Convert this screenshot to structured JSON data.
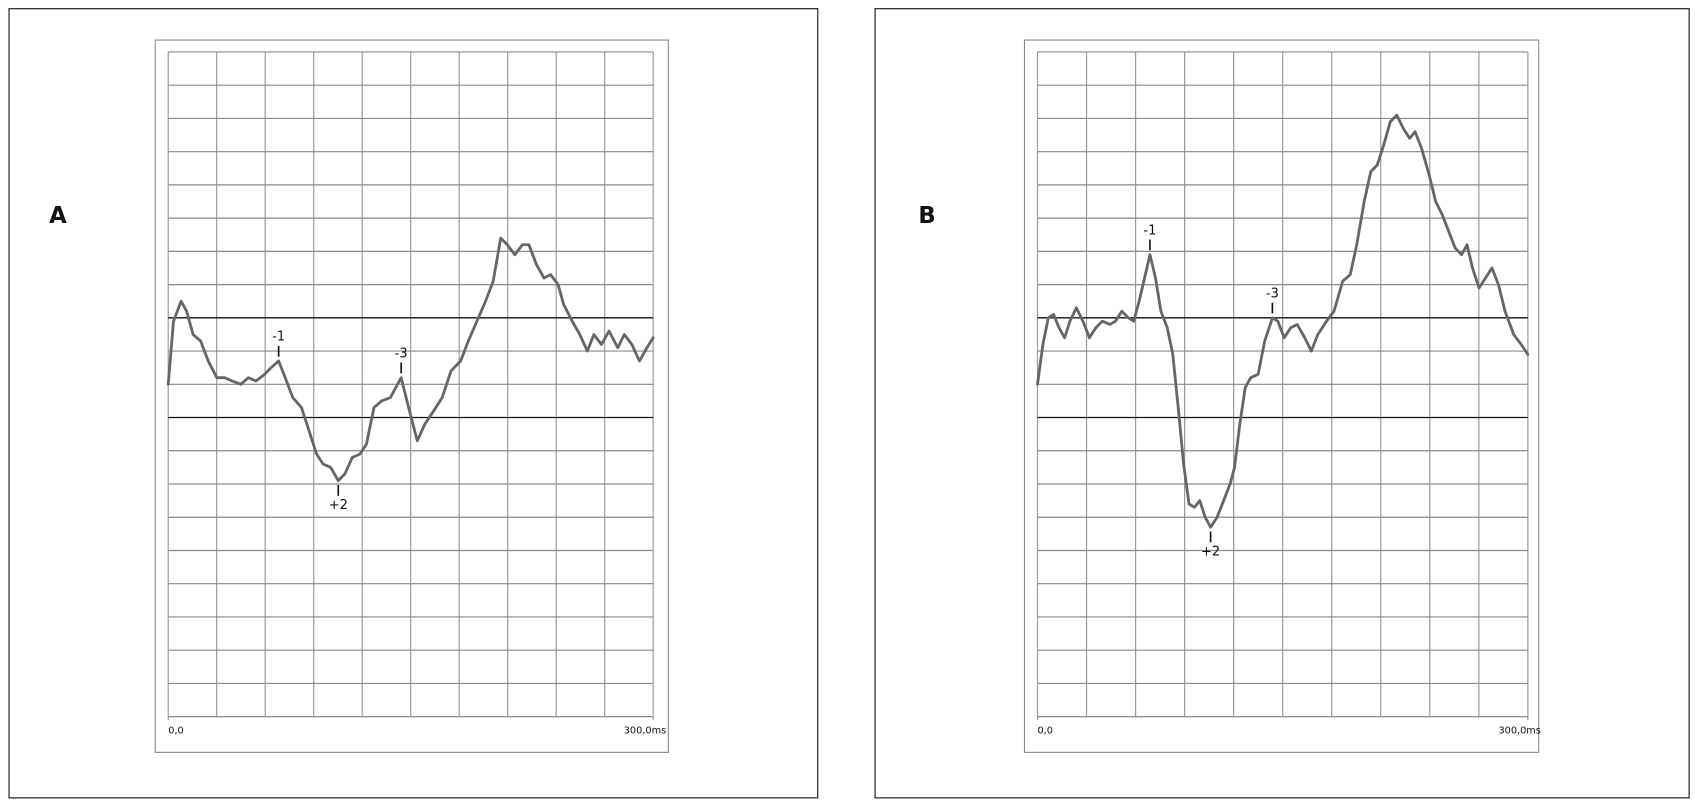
{
  "chart_data": [
    {
      "type": "line",
      "title": "A",
      "xlim": [
        0,
        300
      ],
      "ylim": [
        -12,
        8
      ],
      "xticks": [
        {
          "value": 0,
          "label": "0,0"
        },
        {
          "value": 300,
          "label": "300,0ms"
        }
      ],
      "grid": true,
      "color": "#666666",
      "x": [
        0,
        3.3,
        8.0,
        11.4,
        15.4,
        20.1,
        24.8,
        30.1,
        34.8,
        39.5,
        44.9,
        49.6,
        54.3,
        59.6,
        63.7,
        68.3,
        72.4,
        77.1,
        82.4,
        87.1,
        91.8,
        95.8,
        100.5,
        105.2,
        109.2,
        113.9,
        118.6,
        122.6,
        127.3,
        132.0,
        137.4,
        144.1,
        148.7,
        154.1,
        158.8,
        164.2,
        169.5,
        174.9,
        180.9,
        185.6,
        191.0,
        196.3,
        201.0,
        205.7,
        209.7,
        214.4,
        219.1,
        223.1,
        227.8,
        232.5,
        236.5,
        241.2,
        244.6,
        249.9,
        254.6,
        259.3,
        263.3,
        268.0,
        272.7,
        278.1,
        282.1,
        286.8,
        291.5,
        296.1,
        300
      ],
      "values": [
        -2.0,
        -0.1,
        0.5,
        0.2,
        -0.5,
        -0.7,
        -1.3,
        -1.8,
        -1.8,
        -1.9,
        -2.0,
        -1.8,
        -1.9,
        -1.7,
        -1.5,
        -1.3,
        -1.8,
        -2.4,
        -2.7,
        -3.4,
        -4.1,
        -4.4,
        -4.5,
        -4.9,
        -4.7,
        -4.2,
        -4.1,
        -3.8,
        -2.7,
        -2.5,
        -2.4,
        -1.8,
        -2.7,
        -3.7,
        -3.2,
        -2.8,
        -2.4,
        -1.6,
        -1.3,
        -0.7,
        -0.1,
        0.5,
        1.1,
        2.4,
        2.2,
        1.9,
        2.2,
        2.2,
        1.6,
        1.2,
        1.3,
        1.0,
        0.4,
        -0.1,
        -0.5,
        -1.0,
        -0.5,
        -0.8,
        -0.4,
        -0.9,
        -0.5,
        -0.8,
        -1.3,
        -0.9,
        -0.6
      ],
      "annotations": [
        {
          "text": "-1",
          "x": 68.3,
          "y": -1.3,
          "position": "above"
        },
        {
          "text": "+2",
          "x": 105.2,
          "y": -4.9,
          "position": "below"
        },
        {
          "text": "-3",
          "x": 144.1,
          "y": -1.8,
          "position": "above"
        }
      ]
    },
    {
      "type": "line",
      "title": "B",
      "xlim": [
        0,
        300
      ],
      "ylim": [
        -12,
        8
      ],
      "xticks": [
        {
          "value": 0,
          "label": "0,0"
        },
        {
          "value": 300,
          "label": "300,0ms"
        }
      ],
      "grid": true,
      "color": "#666666",
      "x": [
        0,
        3.3,
        6.6,
        9.9,
        13.2,
        16.6,
        19.9,
        23.8,
        27.8,
        31.8,
        35.7,
        39.7,
        44.4,
        47.7,
        51.6,
        55.6,
        58.9,
        62.2,
        65.5,
        68.8,
        72.2,
        75.5,
        79.4,
        82.8,
        86.1,
        89.4,
        92.7,
        96.0,
        99.3,
        102.6,
        105.9,
        109.9,
        113.9,
        117.8,
        120.5,
        123.8,
        127.1,
        130.4,
        135.0,
        139.0,
        143.7,
        147.0,
        150.9,
        154.9,
        158.9,
        163.5,
        167.5,
        171.5,
        176.8,
        181.4,
        186.7,
        191.3,
        195.3,
        199.9,
        203.9,
        207.9,
        211.8,
        215.8,
        219.8,
        223.8,
        227.7,
        231.0,
        235.0,
        239.6,
        243.6,
        247.6,
        251.6,
        255.5,
        259.5,
        262.8,
        266.1,
        270.1,
        274.1,
        278.0,
        282.0,
        286.0,
        291.3,
        295.9,
        300
      ],
      "values": [
        -2.0,
        -0.8,
        0.0,
        0.1,
        -0.3,
        -0.6,
        -0.1,
        0.3,
        -0.1,
        -0.6,
        -0.3,
        -0.1,
        -0.2,
        -0.1,
        0.2,
        0.0,
        -0.1,
        0.5,
        1.2,
        1.9,
        1.2,
        0.2,
        -0.3,
        -1.1,
        -2.7,
        -4.4,
        -5.6,
        -5.7,
        -5.5,
        -6.0,
        -6.3,
        -6.0,
        -5.5,
        -5.0,
        -4.5,
        -3.2,
        -2.1,
        -1.8,
        -1.7,
        -0.7,
        0.0,
        -0.1,
        -0.6,
        -0.3,
        -0.2,
        -0.6,
        -1.0,
        -0.5,
        -0.1,
        0.2,
        1.1,
        1.3,
        2.2,
        3.5,
        4.4,
        4.6,
        5.2,
        5.9,
        6.1,
        5.7,
        5.4,
        5.6,
        5.1,
        4.3,
        3.5,
        3.1,
        2.6,
        2.1,
        1.9,
        2.2,
        1.5,
        0.9,
        1.2,
        1.5,
        1.0,
        0.2,
        -0.5,
        -0.8,
        -1.1
      ],
      "annotations": [
        {
          "text": "-1",
          "x": 68.8,
          "y": 1.9,
          "position": "above"
        },
        {
          "text": "+2",
          "x": 105.9,
          "y": -6.3,
          "position": "below"
        },
        {
          "text": "-3",
          "x": 143.7,
          "y": 0.0,
          "position": "above"
        }
      ]
    }
  ]
}
